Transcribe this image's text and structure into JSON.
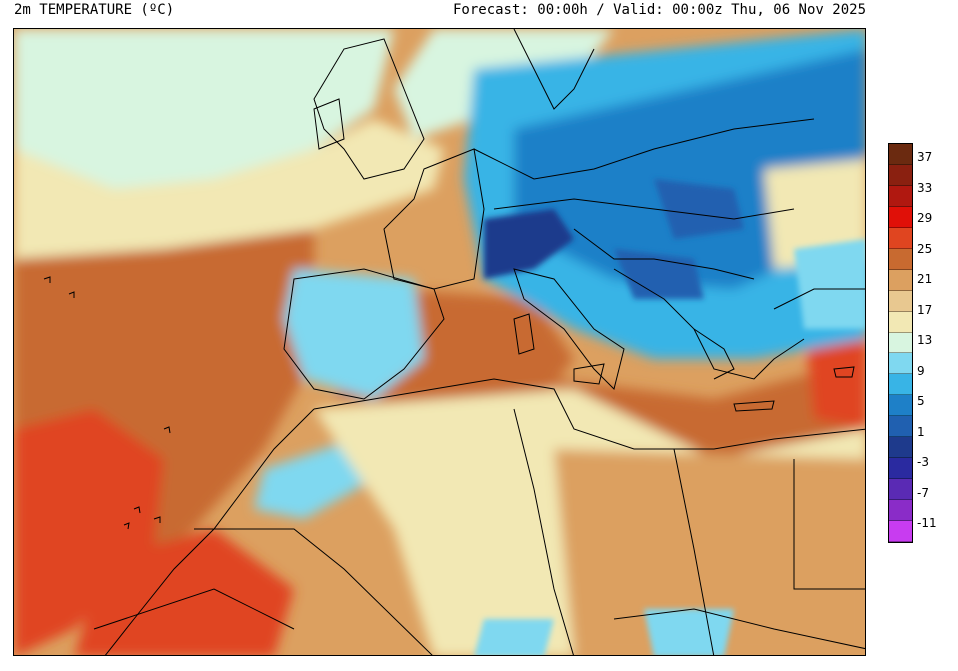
{
  "header": {
    "title": "2m TEMPERATURE (ºC)",
    "forecast": "Forecast: 00:00h / Valid: 00:00z Thu, 06 Nov 2025"
  },
  "legend": {
    "labels": [
      "37",
      "33",
      "29",
      "25",
      "21",
      "17",
      "13",
      "9",
      "5",
      "1",
      "-3",
      "-7",
      "-11"
    ],
    "colors": [
      "#6b2a10",
      "#8a2010",
      "#b01810",
      "#e01008",
      "#e04520",
      "#c86a30",
      "#dca060",
      "#e8c890",
      "#f2e8b4",
      "#d8f5e0",
      "#7fd8f0",
      "#38b4e6",
      "#1e80c8",
      "#2060b0",
      "#1e3a8c",
      "#2a2aa0",
      "#5a2ab4",
      "#8a2cc8",
      "#c83cf0"
    ]
  },
  "map": {
    "colors": {
      "ocean_hot": "#e04520",
      "ocean_warm": "#c86a30",
      "ocean_mild": "#dca060",
      "atlantic_cool": "#f2e8b4",
      "atlantic_cold": "#d8f5e0",
      "land_cold": "#7fd8f0",
      "land_colder": "#38b4e6",
      "alps": "#1e3a8c",
      "border": "#000000"
    }
  }
}
